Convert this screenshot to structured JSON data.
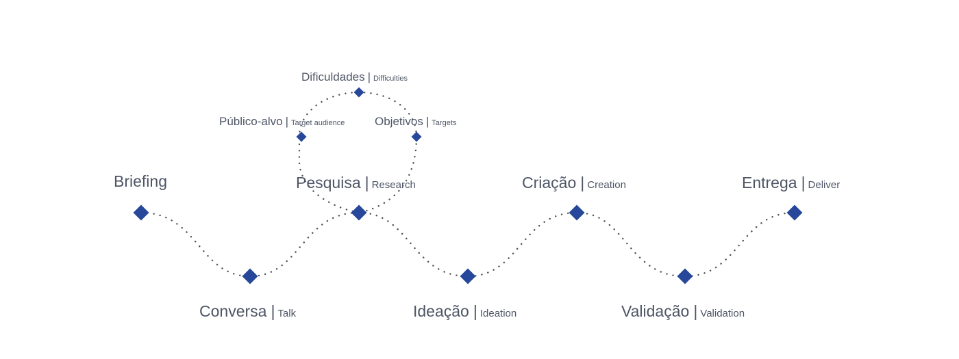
{
  "colors": {
    "marker": "#27479b",
    "text": "#4d5565",
    "path": "#4d5257"
  },
  "steps": [
    {
      "pt": "Briefing",
      "sep": "",
      "en": ""
    },
    {
      "pt": "Conversa",
      "sep": "|",
      "en": "Talk"
    },
    {
      "pt": "Pesquisa",
      "sep": "|",
      "en": "Research"
    },
    {
      "pt": "Ideação",
      "sep": "|",
      "en": "Ideation"
    },
    {
      "pt": "Criação",
      "sep": "|",
      "en": "Creation"
    },
    {
      "pt": "Validação",
      "sep": "|",
      "en": "Validation"
    },
    {
      "pt": "Entrega",
      "sep": "|",
      "en": "Deliver"
    }
  ],
  "research_loop": [
    {
      "pt": "Público-alvo",
      "sep": "|",
      "en": "Target audience"
    },
    {
      "pt": "Dificuldades",
      "sep": "|",
      "en": "Difficulties"
    },
    {
      "pt": "Objetivos",
      "sep": "|",
      "en": "Targets"
    }
  ]
}
